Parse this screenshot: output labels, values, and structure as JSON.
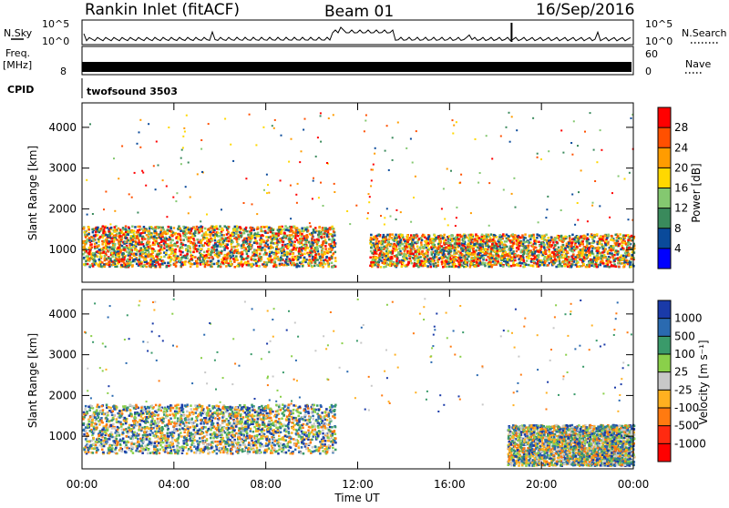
{
  "header": {
    "station": "Rankin Inlet (fitACF)",
    "beam": "Beam 01",
    "date": "16/Sep/2016"
  },
  "status_panels": {
    "nsky_label": "N.Sky",
    "nsearch_label": "N.Search",
    "noise_ticks": [
      "10^5",
      "10^0"
    ],
    "freq_label_top": "Freq.",
    "freq_label_unit": "[MHz]",
    "freq_ticks": [
      "8"
    ],
    "nave_label": "Nave",
    "nave_ticks": [
      "60",
      "0"
    ],
    "cpid_label": "CPID",
    "cpid_value": "twofsound 3503"
  },
  "chart_data": [
    {
      "type": "heatmap",
      "name": "power",
      "xlabel": "",
      "ylabel": "Slant Range [km]",
      "ylim": [
        200,
        4600
      ],
      "yticks": [
        "4000",
        "3000",
        "2000",
        "1000"
      ],
      "colorbar_label": "Power [dB]",
      "colorbar_ticks": [
        "28",
        "24",
        "20",
        "16",
        "12",
        "8",
        "4"
      ],
      "colorbar_colors": [
        "#ff0000",
        "#ff5000",
        "#ff9c00",
        "#ffd800",
        "#84c870",
        "#3a8a5c",
        "#0a4a9a",
        "#0000ff"
      ],
      "observed_segments": [
        {
          "start_hour": 0.0,
          "end_hour": 11.0,
          "range_km": [
            600,
            1600
          ],
          "level": "high"
        },
        {
          "start_hour": 12.5,
          "end_hour": 24.0,
          "range_km": [
            600,
            1400
          ],
          "level": "high"
        }
      ]
    },
    {
      "type": "heatmap",
      "name": "velocity",
      "xlabel": "Time UT",
      "ylabel": "Slant Range [km]",
      "ylim": [
        200,
        4600
      ],
      "xticks": [
        "00:00",
        "04:00",
        "08:00",
        "12:00",
        "16:00",
        "20:00",
        "00:00"
      ],
      "yticks": [
        "4000",
        "3000",
        "2000",
        "1000"
      ],
      "colorbar_label": "Velocity [m s⁻¹]",
      "colorbar_ticks": [
        "1000",
        "500",
        "100",
        "25",
        "-25",
        "-100",
        "-500",
        "-1000"
      ],
      "colorbar_colors": [
        "#1a3aa8",
        "#2a6ab0",
        "#3a9a6a",
        "#8ad04a",
        "#c8c8c8",
        "#ffb020",
        "#ff7a10",
        "#ff2a10",
        "#ff0000"
      ],
      "observed_segments": [
        {
          "start_hour": 0.0,
          "end_hour": 11.0,
          "range_km": [
            600,
            1800
          ],
          "sign": "positive"
        },
        {
          "start_hour": 18.5,
          "end_hour": 24.0,
          "range_km": [
            300,
            1300
          ],
          "sign": "negative"
        }
      ]
    }
  ],
  "colors": {
    "white": "#ffffff",
    "black": "#000000"
  }
}
